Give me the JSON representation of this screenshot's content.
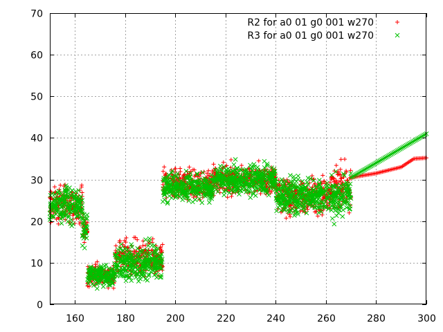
{
  "chart_data": {
    "type": "scatter",
    "title": "",
    "xlabel": "",
    "ylabel": "",
    "xlim": [
      150,
      300
    ],
    "ylim": [
      0,
      70
    ],
    "x_ticks": [
      "160",
      "180",
      "200",
      "220",
      "240",
      "260",
      "280",
      "300"
    ],
    "y_ticks": [
      "0",
      "10",
      "20",
      "30",
      "40",
      "50",
      "60",
      "70"
    ],
    "grid": true,
    "legend_position": "top-right",
    "series": [
      {
        "name": "R2 for a0 01 g0 001 w270",
        "color": "#ff0000",
        "marker": "plus",
        "segments": [
          {
            "x_range": [
              150,
              163
            ],
            "center": 24,
            "spread": 5
          },
          {
            "x_range": [
              163,
              165
            ],
            "center": 18,
            "spread": 5
          },
          {
            "x_range": [
              165,
              176
            ],
            "center": 7,
            "spread": 3
          },
          {
            "x_range": [
              176,
              195
            ],
            "center": 11,
            "spread": 5
          },
          {
            "x_range": [
              195,
              215
            ],
            "center": 29,
            "spread": 4
          },
          {
            "x_range": [
              215,
              240
            ],
            "center": 30,
            "spread": 4
          },
          {
            "x_range": [
              240,
              262
            ],
            "center": 26,
            "spread": 5
          },
          {
            "x_range": [
              262,
              270
            ],
            "center": 28,
            "spread": 6
          }
        ],
        "trend": {
          "x": [
            270,
            280,
            290,
            295,
            300
          ],
          "y": [
            30.5,
            31.5,
            33,
            35,
            35.2
          ]
        }
      },
      {
        "name": "R3 for a0 01 g0 001 w270",
        "color": "#00c000",
        "marker": "cross",
        "segments": [
          {
            "x_range": [
              150,
              163
            ],
            "center": 24,
            "spread": 5
          },
          {
            "x_range": [
              163,
              165
            ],
            "center": 18,
            "spread": 5
          },
          {
            "x_range": [
              165,
              176
            ],
            "center": 7,
            "spread": 3
          },
          {
            "x_range": [
              176,
              195
            ],
            "center": 10,
            "spread": 5
          },
          {
            "x_range": [
              195,
              215
            ],
            "center": 28,
            "spread": 4
          },
          {
            "x_range": [
              215,
              240
            ],
            "center": 30,
            "spread": 4
          },
          {
            "x_range": [
              240,
              262
            ],
            "center": 26,
            "spread": 5
          },
          {
            "x_range": [
              262,
              270
            ],
            "center": 26,
            "spread": 6
          }
        ],
        "trend": {
          "x": [
            270,
            300
          ],
          "y": [
            30.5,
            41
          ]
        }
      }
    ]
  }
}
